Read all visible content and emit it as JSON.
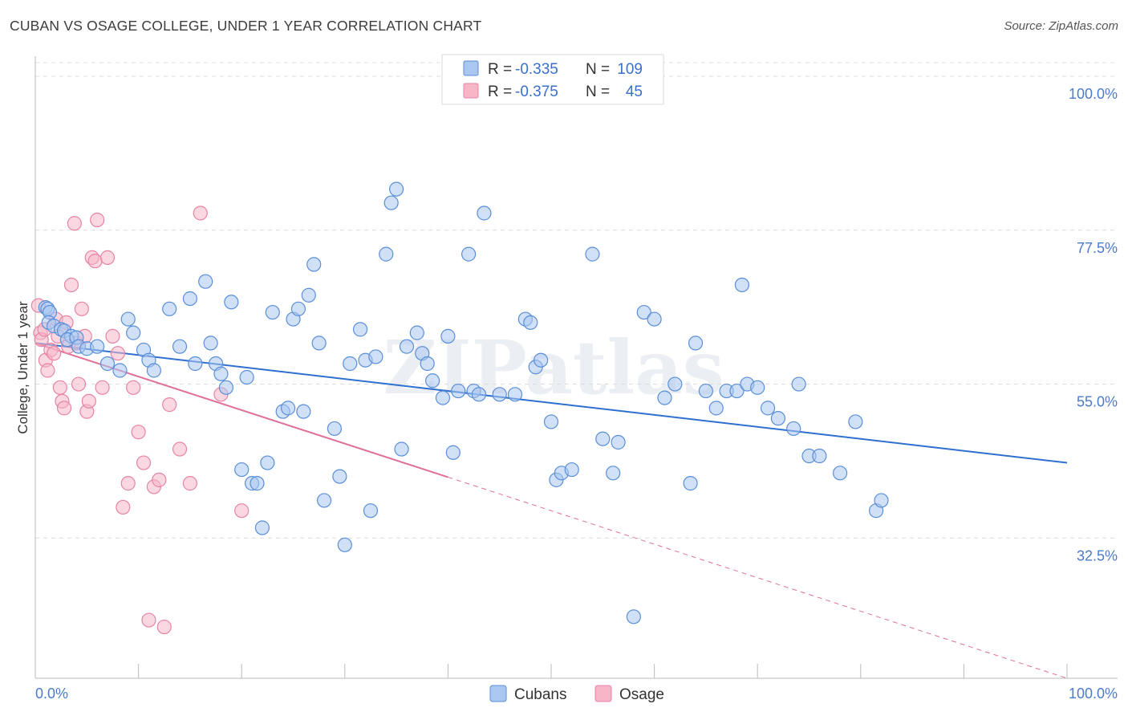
{
  "title": "CUBAN VS OSAGE COLLEGE, UNDER 1 YEAR CORRELATION CHART",
  "source": "Source: ZipAtlas.com",
  "watermark": "ZIPatlas",
  "colors": {
    "cubans_fill": "#a9c7f0",
    "cubans_stroke": "#5a8fd8",
    "cubans_line": "#2f6fd0",
    "osage_fill": "#f6b6c8",
    "osage_stroke": "#e784a4",
    "osage_line": "#e0709a",
    "tick_text": "#4a7cc9"
  },
  "legend": {
    "rows": [
      {
        "r_label": "R =",
        "r_value": "-0.335",
        "n_label": "N =",
        "n_value": "109"
      },
      {
        "r_label": "R =",
        "r_value": "-0.375",
        "n_label": "N =",
        "n_value": "45"
      }
    ]
  },
  "chart_data": {
    "type": "scatter",
    "title": "CUBAN VS OSAGE COLLEGE, UNDER 1 YEAR CORRELATION CHART",
    "xlabel": "",
    "ylabel": "College, Under 1 year",
    "xlim": [
      0,
      100
    ],
    "ylim": [
      12,
      102
    ],
    "x_tick_labels": [
      "0.0%",
      "100.0%"
    ],
    "y_ticks": [
      32.5,
      55.0,
      77.5,
      100.0
    ],
    "y_tick_labels": [
      "32.5%",
      "55.0%",
      "77.5%",
      "100.0%"
    ],
    "grid": true,
    "legend_position": "bottom",
    "series": [
      {
        "name": "Cubans",
        "trend": {
          "x": [
            0,
            100
          ],
          "y": [
            61.0,
            43.5
          ],
          "dashed_from_x": null
        },
        "points": [
          [
            1.0,
            66.2
          ],
          [
            1.2,
            66.0
          ],
          [
            1.4,
            65.5
          ],
          [
            1.3,
            64.0
          ],
          [
            1.8,
            63.5
          ],
          [
            2.5,
            63.0
          ],
          [
            2.8,
            62.8
          ],
          [
            3.5,
            62.0
          ],
          [
            3.1,
            61.5
          ],
          [
            4.0,
            61.8
          ],
          [
            4.2,
            60.5
          ],
          [
            5.0,
            60.2
          ],
          [
            6.0,
            60.5
          ],
          [
            7.0,
            58.0
          ],
          [
            8.2,
            57.0
          ],
          [
            9.0,
            64.5
          ],
          [
            9.5,
            62.5
          ],
          [
            10.5,
            60.0
          ],
          [
            11.0,
            58.5
          ],
          [
            11.5,
            57.0
          ],
          [
            13.0,
            66.0
          ],
          [
            14.0,
            60.5
          ],
          [
            15.0,
            67.5
          ],
          [
            15.5,
            58.0
          ],
          [
            16.5,
            70.0
          ],
          [
            17.0,
            61.0
          ],
          [
            17.5,
            58.0
          ],
          [
            18.0,
            56.5
          ],
          [
            18.5,
            54.5
          ],
          [
            19.0,
            67.0
          ],
          [
            20.0,
            42.5
          ],
          [
            20.5,
            56.0
          ],
          [
            21.0,
            40.5
          ],
          [
            21.5,
            40.5
          ],
          [
            22.0,
            34.0
          ],
          [
            22.5,
            43.5
          ],
          [
            23.0,
            65.5
          ],
          [
            24.0,
            51.0
          ],
          [
            24.5,
            51.5
          ],
          [
            25.0,
            64.5
          ],
          [
            25.5,
            66.0
          ],
          [
            26.0,
            51.0
          ],
          [
            26.5,
            68.0
          ],
          [
            27.0,
            72.5
          ],
          [
            27.5,
            61.0
          ],
          [
            28.0,
            38.0
          ],
          [
            29.0,
            48.5
          ],
          [
            29.5,
            41.5
          ],
          [
            30.0,
            31.5
          ],
          [
            30.5,
            58.0
          ],
          [
            31.5,
            63.0
          ],
          [
            32.0,
            58.5
          ],
          [
            32.5,
            36.5
          ],
          [
            33.0,
            59.0
          ],
          [
            34.0,
            74.0
          ],
          [
            34.5,
            81.5
          ],
          [
            35.0,
            83.5
          ],
          [
            35.5,
            45.5
          ],
          [
            36.0,
            60.5
          ],
          [
            37.0,
            62.5
          ],
          [
            37.5,
            59.5
          ],
          [
            38.0,
            58.0
          ],
          [
            38.5,
            55.5
          ],
          [
            39.5,
            53.0
          ],
          [
            40.0,
            62.0
          ],
          [
            40.5,
            45.0
          ],
          [
            41.0,
            54.0
          ],
          [
            42.0,
            74.0
          ],
          [
            42.5,
            54.0
          ],
          [
            43.0,
            53.5
          ],
          [
            43.5,
            80.0
          ],
          [
            45.0,
            53.5
          ],
          [
            46.5,
            53.5
          ],
          [
            47.5,
            64.5
          ],
          [
            48.0,
            64.0
          ],
          [
            48.5,
            57.5
          ],
          [
            49.0,
            58.5
          ],
          [
            50.0,
            49.5
          ],
          [
            50.5,
            41.0
          ],
          [
            51.0,
            42.0
          ],
          [
            52.0,
            42.5
          ],
          [
            54.0,
            74.0
          ],
          [
            55.0,
            47.0
          ],
          [
            56.0,
            42.0
          ],
          [
            56.5,
            46.5
          ],
          [
            58.0,
            21.0
          ],
          [
            59.0,
            65.5
          ],
          [
            60.0,
            64.5
          ],
          [
            61.0,
            53.0
          ],
          [
            62.0,
            55.0
          ],
          [
            63.5,
            40.5
          ],
          [
            64.0,
            61.0
          ],
          [
            65.0,
            54.0
          ],
          [
            66.0,
            51.5
          ],
          [
            67.0,
            54.0
          ],
          [
            68.0,
            54.0
          ],
          [
            68.5,
            69.5
          ],
          [
            69.0,
            55.0
          ],
          [
            70.0,
            54.5
          ],
          [
            71.0,
            51.5
          ],
          [
            72.0,
            50.0
          ],
          [
            73.5,
            48.5
          ],
          [
            74.0,
            55.0
          ],
          [
            75.0,
            44.5
          ],
          [
            76.0,
            44.5
          ],
          [
            78.0,
            42.0
          ],
          [
            79.5,
            49.5
          ],
          [
            81.5,
            36.5
          ],
          [
            82.0,
            38.0
          ]
        ]
      },
      {
        "name": "Osage",
        "trend": {
          "x": [
            0,
            100
          ],
          "y": [
            61.0,
            12.0
          ],
          "dashed_from_x": 40.0
        },
        "points": [
          [
            0.3,
            66.5
          ],
          [
            0.5,
            62.5
          ],
          [
            0.6,
            61.5
          ],
          [
            0.9,
            63.0
          ],
          [
            1.0,
            58.5
          ],
          [
            1.2,
            57.0
          ],
          [
            1.5,
            60.0
          ],
          [
            1.8,
            59.5
          ],
          [
            2.0,
            64.5
          ],
          [
            2.2,
            62.0
          ],
          [
            2.4,
            54.5
          ],
          [
            2.6,
            52.5
          ],
          [
            2.8,
            51.5
          ],
          [
            3.0,
            64.0
          ],
          [
            3.2,
            60.5
          ],
          [
            3.5,
            69.5
          ],
          [
            3.8,
            78.5
          ],
          [
            4.0,
            61.0
          ],
          [
            4.2,
            55.0
          ],
          [
            4.5,
            66.0
          ],
          [
            4.8,
            62.0
          ],
          [
            5.0,
            51.0
          ],
          [
            5.2,
            52.5
          ],
          [
            5.5,
            73.5
          ],
          [
            5.8,
            73.0
          ],
          [
            6.0,
            79.0
          ],
          [
            6.5,
            54.5
          ],
          [
            7.0,
            73.5
          ],
          [
            7.5,
            62.0
          ],
          [
            8.0,
            59.5
          ],
          [
            8.5,
            37.0
          ],
          [
            9.0,
            40.5
          ],
          [
            9.5,
            54.5
          ],
          [
            10.0,
            48.0
          ],
          [
            10.5,
            43.5
          ],
          [
            11.0,
            20.5
          ],
          [
            11.5,
            40.0
          ],
          [
            12.0,
            41.0
          ],
          [
            12.5,
            19.5
          ],
          [
            13.0,
            52.0
          ],
          [
            14.0,
            45.5
          ],
          [
            15.0,
            40.5
          ],
          [
            16.0,
            80.0
          ],
          [
            18.0,
            53.5
          ],
          [
            20.0,
            36.5
          ]
        ]
      }
    ]
  },
  "bottom_legend": {
    "cubans": "Cubans",
    "osage": "Osage"
  }
}
